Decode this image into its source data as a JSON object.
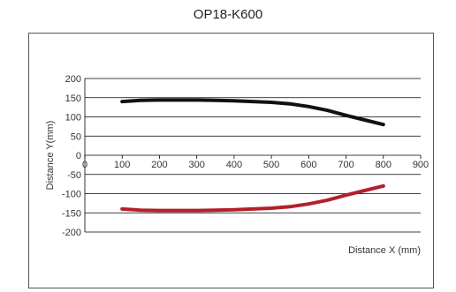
{
  "chart_data": {
    "type": "line",
    "title": "OP18-K600",
    "xlabel": "Distance X (mm)",
    "ylabel": "Distance Y(mm)",
    "xlim": [
      0,
      900
    ],
    "ylim": [
      -200,
      200
    ],
    "xticks": [
      0,
      100,
      200,
      300,
      400,
      500,
      600,
      700,
      800,
      900
    ],
    "yticks": [
      -200,
      -150,
      -100,
      -50,
      0,
      50,
      100,
      150,
      200
    ],
    "grid": "horizontal",
    "legend": "none",
    "series": [
      {
        "color": "#111111",
        "x": [
          100,
          150,
          200,
          250,
          300,
          350,
          400,
          450,
          500,
          550,
          600,
          650,
          700,
          750,
          800
        ],
        "y": [
          140,
          143,
          144,
          144,
          144,
          143,
          142,
          140,
          138,
          134,
          127,
          117,
          104,
          92,
          80
        ]
      },
      {
        "color": "#b3202a",
        "x": [
          100,
          150,
          200,
          250,
          300,
          350,
          400,
          450,
          500,
          550,
          600,
          650,
          700,
          750,
          800
        ],
        "y": [
          -140,
          -143,
          -144,
          -144,
          -144,
          -143,
          -142,
          -140,
          -138,
          -134,
          -127,
          -117,
          -104,
          -92,
          -80
        ]
      }
    ]
  }
}
